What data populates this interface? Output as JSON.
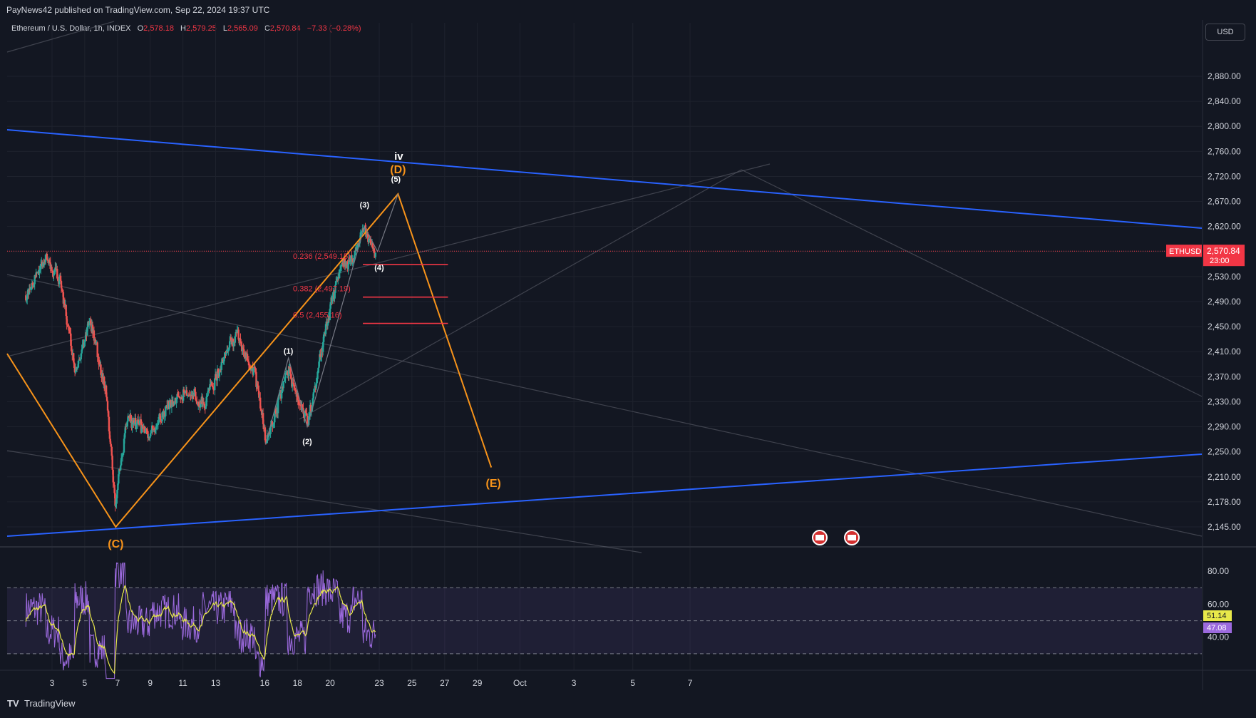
{
  "header": {
    "publisher": "PayNews42 published on TradingView.com, Sep 22, 2024 19:37 UTC"
  },
  "legend": {
    "symbol": "Ethereum / U.S. Dollar, 1h, INDEX",
    "open_label": "O",
    "open": "2,578.18",
    "high_label": "H",
    "high": "2,579.25",
    "low_label": "L",
    "low": "2,565.09",
    "close_label": "C",
    "close": "2,570.84",
    "change": "−7.33 (−0.28%)"
  },
  "currency_button": "USD",
  "footer": {
    "brand": "TradingView"
  },
  "colors": {
    "background": "#131722",
    "up": "#26a69a",
    "down": "#ef5350",
    "trendline": "#2962ff",
    "wave": "#f7931a",
    "fib": "#f23645",
    "rsi": "#9c6ade",
    "rsi_ma": "#e8e84a"
  },
  "chart_data": [
    {
      "type": "candlestick",
      "symbol": "ETHUSD",
      "interval": "1h",
      "ylim": [
        2110,
        2960
      ],
      "y_ticks": [
        "2,880.00",
        "2,840.00",
        "2,800.00",
        "2,760.00",
        "2,720.00",
        "2,670.00",
        "2,620.00",
        "2,570.00",
        "2,530.00",
        "2,490.00",
        "2,450.00",
        "2,410.00",
        "2,370.00",
        "2,330.00",
        "2,290.00",
        "2,250.00",
        "2,210.00",
        "2,178.00",
        "2,145.00"
      ],
      "x_ticks": [
        "3",
        "5",
        "7",
        "9",
        "11",
        "13",
        "16",
        "18",
        "20",
        "23",
        "25",
        "27",
        "29",
        "Oct",
        "3",
        "5",
        "7"
      ],
      "last_price_label": "ETHUSD",
      "last_price": "2,570.84",
      "countdown": "23:00",
      "wave_labels": [
        {
          "text": "(C)",
          "kind": "major"
        },
        {
          "text": "(D)",
          "kind": "major"
        },
        {
          "text": "(E)",
          "kind": "major"
        },
        {
          "text": "iv",
          "kind": "degree"
        },
        {
          "text": "(1)",
          "kind": "minor"
        },
        {
          "text": "(2)",
          "kind": "minor"
        },
        {
          "text": "(3)",
          "kind": "minor"
        },
        {
          "text": "(4)",
          "kind": "minor"
        },
        {
          "text": "(5)",
          "kind": "minor"
        }
      ],
      "fib_levels": [
        {
          "label": "0.236 (2,549.15)",
          "price": 2549.15
        },
        {
          "label": "0.382 (2,497.19)",
          "price": 2497.19
        },
        {
          "label": "0.5 (2,455.16)",
          "price": 2455.16
        }
      ],
      "anchors": [
        {
          "date": "Sep 6",
          "price": 2205
        },
        {
          "date": "Sep 14",
          "price": 2460
        },
        {
          "date": "Sep 16",
          "price": 2260
        },
        {
          "date": "Sep 17",
          "price": 2400
        },
        {
          "date": "Sep 18",
          "price": 2290
        },
        {
          "date": "Sep 21",
          "price": 2620
        },
        {
          "date": "Sep 22",
          "price": 2570
        }
      ]
    },
    {
      "type": "line",
      "name": "RSI",
      "ylim": [
        20,
        90
      ],
      "y_ticks": [
        "80.00",
        "60.00",
        "40.00"
      ],
      "rsi_value": "47.08",
      "ma_value": "51.14"
    }
  ]
}
